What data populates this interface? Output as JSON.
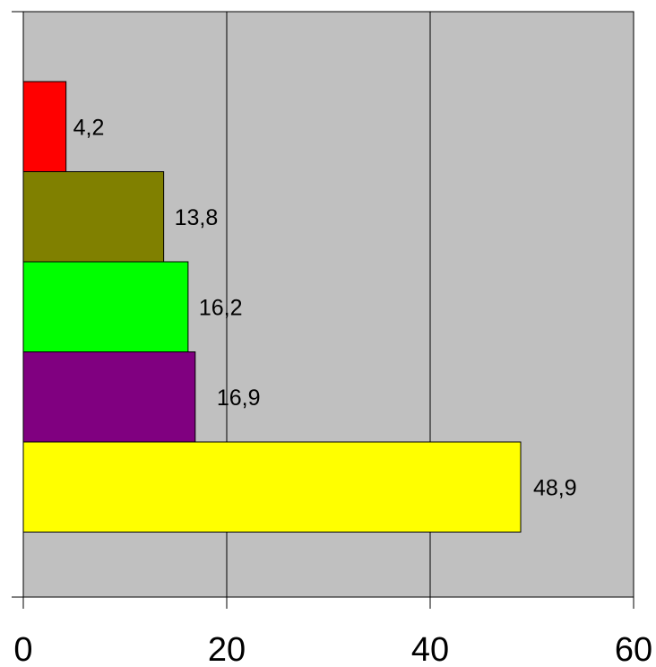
{
  "chart_data": {
    "type": "bar",
    "orientation": "horizontal",
    "title": "",
    "xlabel": "",
    "ylabel": "",
    "categories": [
      "",
      "",
      "",
      "",
      ""
    ],
    "values": [
      48.9,
      16.9,
      16.2,
      13.8,
      4.2
    ],
    "value_labels": [
      "48,9",
      "16,9",
      "16,2",
      "13,8",
      "4,2"
    ],
    "colors": [
      "#ffff00",
      "#800080",
      "#00ff00",
      "#808000",
      "#ff0000"
    ],
    "xlim": [
      0,
      60
    ],
    "xticks": [
      0,
      20,
      40,
      60
    ],
    "xtick_labels": [
      "0",
      "20",
      "40",
      "60"
    ],
    "grid": "vertical",
    "plot_background": "#c0c0c0",
    "legend": "none"
  }
}
